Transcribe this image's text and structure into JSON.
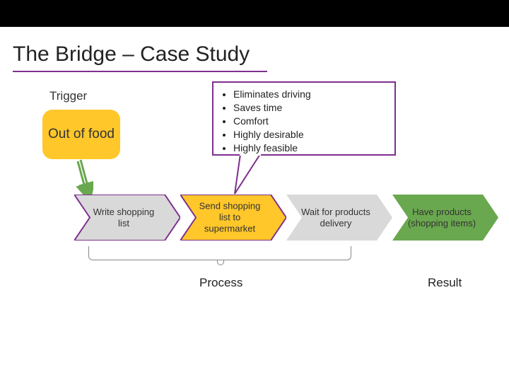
{
  "title": "The Bridge – Case  Study",
  "labels": {
    "trigger": "Trigger",
    "process": "Process",
    "result": "Result"
  },
  "trigger_box": {
    "text": "Out of food",
    "bg_color": "#ffc72a",
    "text_color": "#333333",
    "border_radius": 14,
    "fontsize": 19
  },
  "callout": {
    "items": [
      "Eliminates driving",
      "Saves time",
      "Comfort",
      "Highly desirable",
      "Highly feasible"
    ],
    "border_color": "#7e2f8e",
    "fontsize": 14
  },
  "chevrons": [
    {
      "text": "Write shopping list",
      "fill": "#d9d9d9",
      "stroke": "#7e2f8e",
      "text_color": "#333333",
      "highlighted": false
    },
    {
      "text": "Send shopping list to supermarket",
      "fill": "#ffc72a",
      "stroke": "#7e2f8e",
      "text_color": "#333333",
      "highlighted": true
    },
    {
      "text": "Wait for products delivery",
      "fill": "#d9d9d9",
      "stroke": "none",
      "text_color": "#333333",
      "highlighted": false
    },
    {
      "text": "Have products (shopping items)",
      "fill": "#6aa84f",
      "stroke": "none",
      "text_color": "#333333",
      "highlighted": false
    }
  ],
  "chevron_layout": {
    "width": 150,
    "height": 65,
    "notch": 22,
    "gap": 0,
    "stroke_width": 2
  },
  "colors": {
    "topbar": "#000000",
    "background": "#ffffff",
    "title_underline": "#7e2f8e",
    "arrow_green": "#6aa84f",
    "bracket_gray": "#888888"
  },
  "typography": {
    "title_fontsize": 30,
    "label_fontsize": 17,
    "chevron_fontsize": 13
  }
}
